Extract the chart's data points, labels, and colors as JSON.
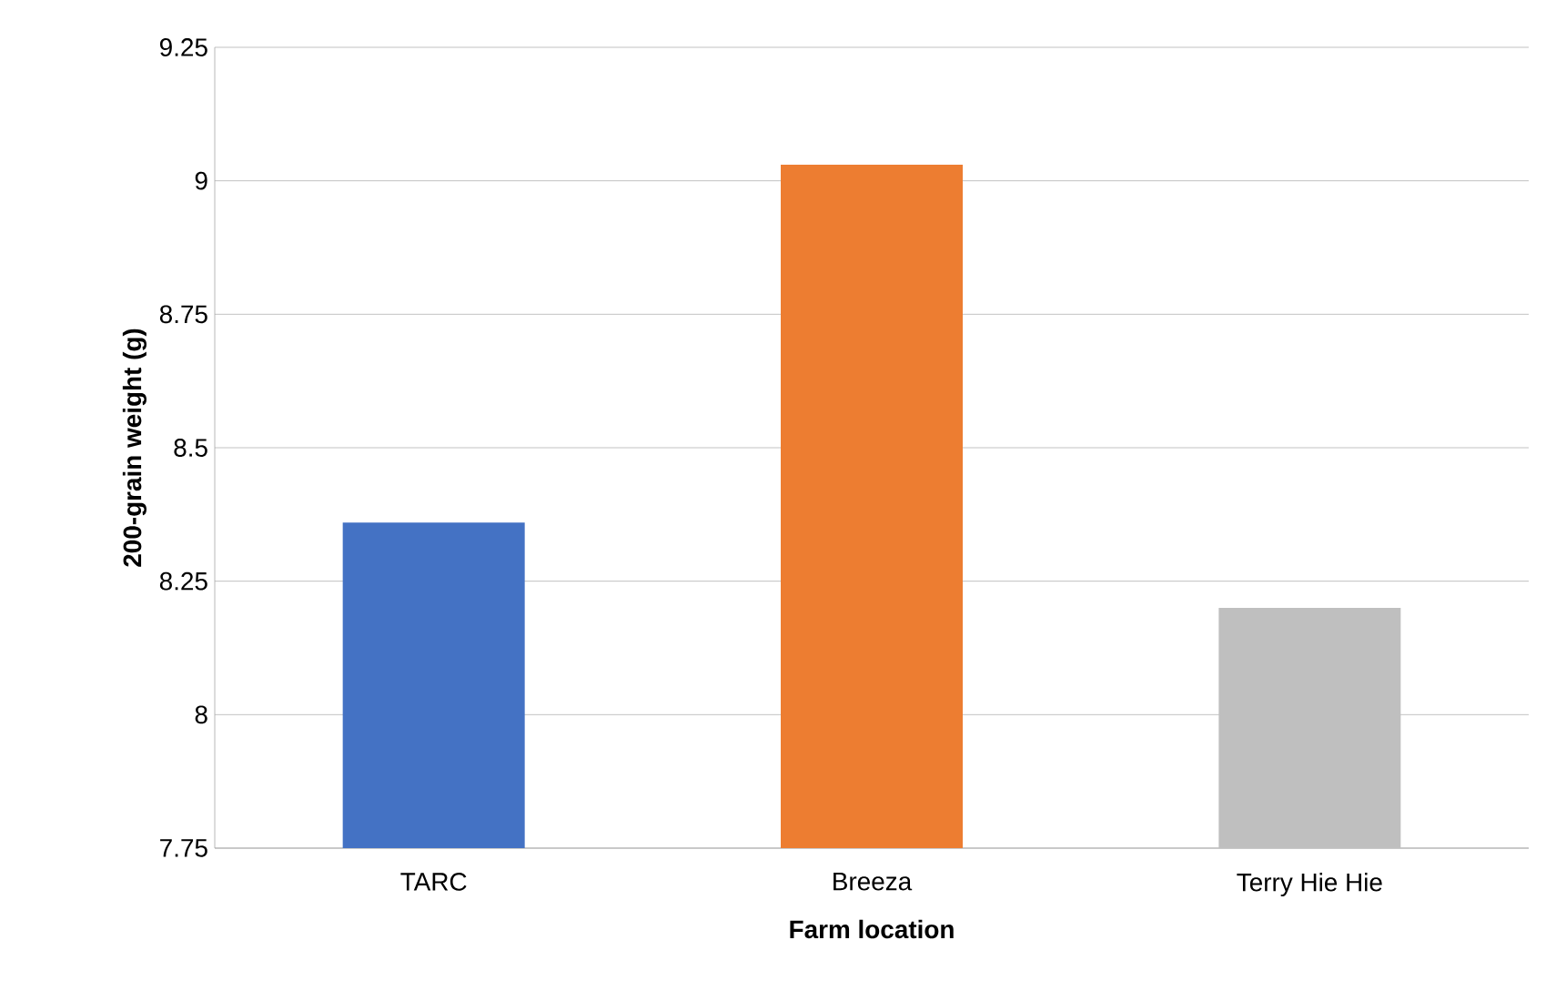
{
  "chart_data": {
    "type": "bar",
    "xlabel": "Farm location",
    "ylabel": "200-grain weight (g)",
    "categories": [
      "TARC",
      "Breeza",
      "Terry Hie Hie"
    ],
    "values": [
      8.36,
      9.03,
      8.2
    ],
    "colors": [
      "#4472c4",
      "#ed7d31",
      "#bfbfbf"
    ],
    "ylim": [
      7.75,
      9.25
    ],
    "yticks": [
      7.75,
      8,
      8.25,
      8.5,
      8.75,
      9,
      9.25
    ],
    "grid": "y"
  }
}
